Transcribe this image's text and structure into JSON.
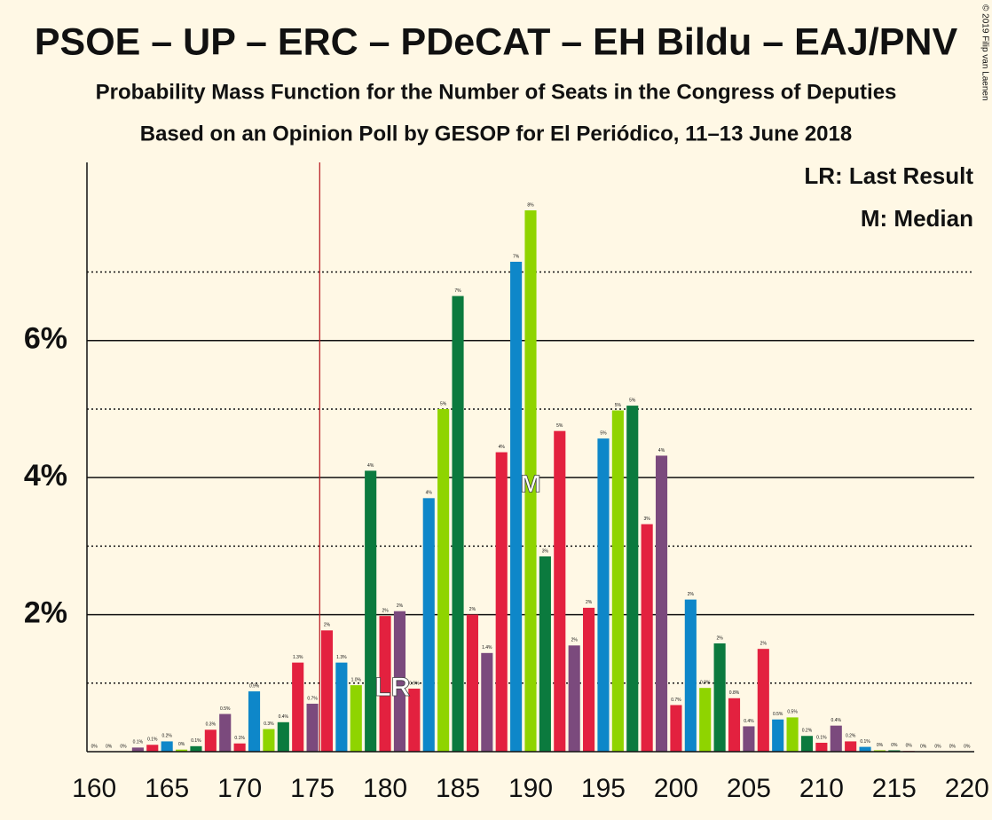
{
  "chart_data": {
    "type": "bar",
    "title": "PSOE – UP – ERC – PDeCAT – EH Bildu – EAJ/PNV",
    "subtitles": [
      "Probability Mass Function for the Number of Seats in the Congress of Deputies",
      "Based on an Opinion Poll by GESOP for El Periódico, 11–13 June 2018"
    ],
    "legend_texts": [
      "LR: Last Result",
      "M: Median"
    ],
    "copyright": "© 2019 Filip van Laenen",
    "x": [
      160,
      161,
      162,
      163,
      164,
      165,
      166,
      167,
      168,
      169,
      170,
      171,
      172,
      173,
      174,
      175,
      176,
      177,
      178,
      179,
      180,
      181,
      182,
      183,
      184,
      185,
      186,
      187,
      188,
      189,
      190,
      191,
      192,
      193,
      194,
      195,
      196,
      197,
      198,
      199,
      200,
      201,
      202,
      203,
      204,
      205,
      206,
      207,
      208,
      209,
      210,
      211,
      212,
      213,
      214,
      215,
      216,
      217,
      218,
      219,
      220
    ],
    "values": [
      0,
      0,
      0,
      0.06,
      0.1,
      0.15,
      0.03,
      0.08,
      0.32,
      0.55,
      0.12,
      0.88,
      0.33,
      0.43,
      1.3,
      0.7,
      1.77,
      1.3,
      0.97,
      4.1,
      1.98,
      2.05,
      0.92,
      3.7,
      5,
      6.65,
      2,
      1.44,
      4.37,
      7.15,
      7.9,
      2.85,
      4.68,
      1.55,
      2.1,
      4.57,
      4.98,
      5.05,
      3.32,
      4.32,
      0.68,
      2.22,
      0.93,
      1.58,
      0.78,
      0.37,
      1.5,
      0.47,
      0.5,
      0.23,
      0.13,
      0.38,
      0.15,
      0.07,
      0.02,
      0.02,
      0.01,
      0,
      0,
      0,
      0
    ],
    "value_labels": [
      "0%",
      "0%",
      "0%",
      "0.1%",
      "0.1%",
      "0.2%",
      "0%",
      "0.1%",
      "0.3%",
      "0.5%",
      "0.1%",
      "0.9%",
      "0.3%",
      "0.4%",
      "1.3%",
      "0.7%",
      "2%",
      "1.3%",
      "1.0%",
      "4%",
      "2%",
      "2%",
      "0.9%",
      "4%",
      "5%",
      "7%",
      "2%",
      "1.4%",
      "4%",
      "7%",
      "8%",
      "3%",
      "5%",
      "2%",
      "2%",
      "5%",
      "5%",
      "5%",
      "3%",
      "4%",
      "0.7%",
      "2%",
      "0.9%",
      "2%",
      "0.8%",
      "0.4%",
      "2%",
      "0.5%",
      "0.5%",
      "0.2%",
      "0.1%",
      "0.4%",
      "0.2%",
      "0.1%",
      "0%",
      "0%",
      "0%",
      "0%",
      "0%",
      "0%",
      "0%"
    ],
    "colors": [
      "#8fd400",
      "#0b7a3e",
      "#e3213f",
      "#7b4a7d",
      "#e3213f",
      "#0e87c9"
    ],
    "xlim": [
      159.5,
      220.5
    ],
    "xticks": [
      160,
      165,
      170,
      175,
      180,
      185,
      190,
      195,
      200,
      205,
      210,
      215,
      220
    ],
    "ylim": [
      0,
      8.6
    ],
    "yticks": [
      {
        "value": 2,
        "label": "2%"
      },
      {
        "value": 4,
        "label": "4%"
      },
      {
        "value": 6,
        "label": "6%"
      }
    ],
    "minor_yticks": [
      1,
      3,
      5,
      7
    ],
    "last_result": 176,
    "last_result_label": "LR",
    "median": 190,
    "median_label": "M"
  }
}
